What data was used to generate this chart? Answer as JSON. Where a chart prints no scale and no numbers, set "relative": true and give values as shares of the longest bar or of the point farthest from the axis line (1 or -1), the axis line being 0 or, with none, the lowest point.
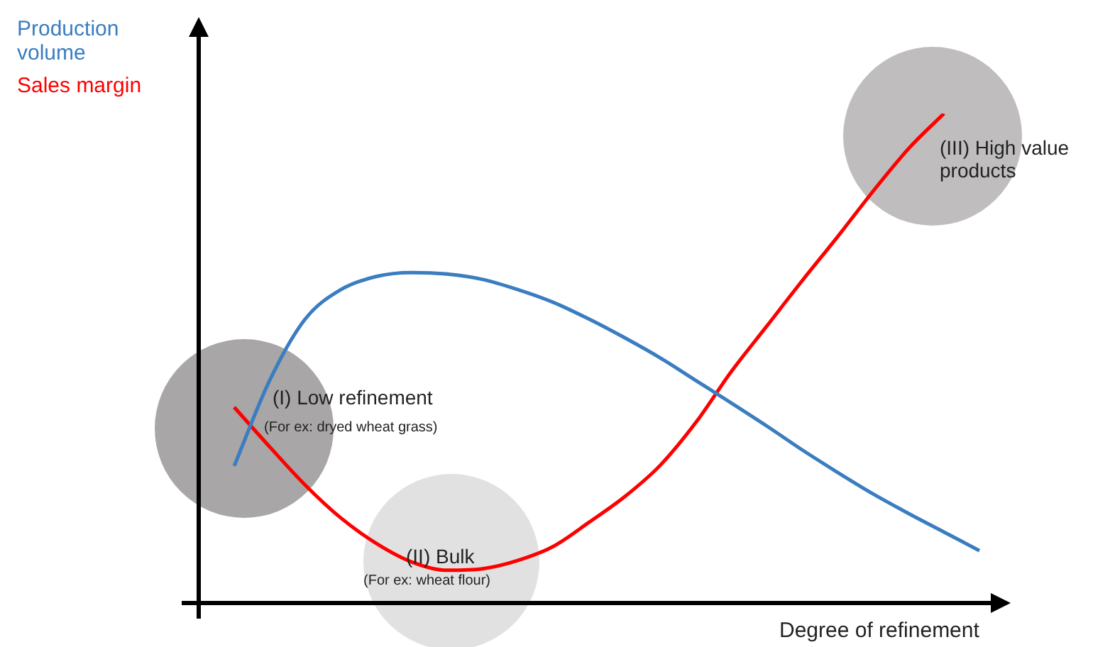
{
  "chart_data": {
    "type": "line",
    "relative": true,
    "xlabel": "Degree of refinement",
    "legend": "top left",
    "marker": "none",
    "line_style": "solid",
    "categories": [
      null,
      null,
      null,
      null,
      null,
      null,
      null,
      null,
      null,
      null,
      null,
      null,
      null,
      null,
      null,
      null,
      null,
      null,
      null,
      null,
      null,
      null
    ],
    "series": [
      {
        "name": "Production volume",
        "color": "#3a7dc0",
        "values": [
          0.28,
          0.455,
          0.58,
          0.64,
          0.667,
          0.675,
          0.672,
          0.661,
          0.64,
          0.614,
          0.58,
          0.542,
          0.501,
          0.455,
          0.409,
          0.362,
          0.313,
          0.267,
          0.223,
          0.183,
          0.145,
          0.107
        ]
      },
      {
        "name": "Sales margin",
        "color": "#ff0000",
        "values": [
          0.4,
          0.319,
          0.241,
          0.174,
          0.122,
          0.084,
          0.067,
          0.07,
          0.087,
          0.116,
          0.165,
          0.217,
          0.281,
          0.368,
          0.472,
          0.565,
          0.658,
          0.748,
          0.841,
          0.928,
          1,
          null
        ]
      }
    ],
    "annotations": [
      "(I) Low refinement",
      "(For ex: dryed wheat grass)",
      "(II) Bulk",
      "(For ex: wheat flour)",
      "(III) High value products"
    ]
  }
}
